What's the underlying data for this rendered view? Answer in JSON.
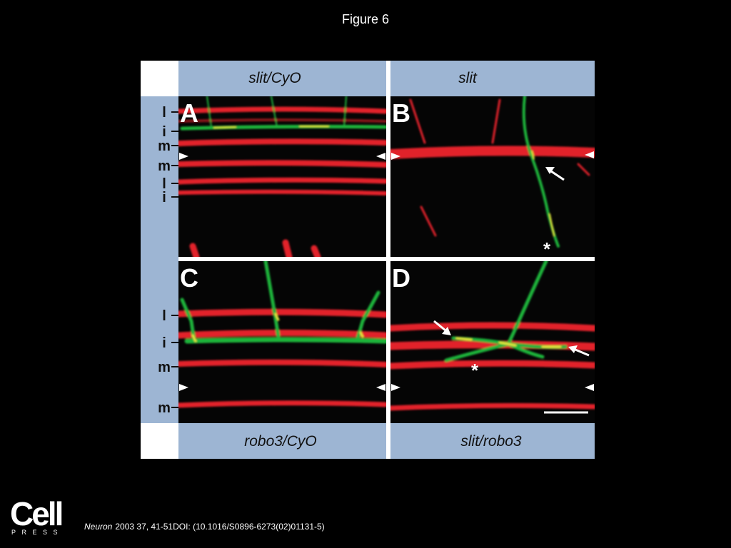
{
  "header": {
    "title": "Figure 6"
  },
  "figure": {
    "column_headers_top": [
      "slit/CyO",
      "slit"
    ],
    "column_headers_bottom": [
      "robo3/CyO",
      "slit/robo3"
    ],
    "panels": [
      {
        "letter": "A"
      },
      {
        "letter": "B",
        "asterisk": "*"
      },
      {
        "letter": "C"
      },
      {
        "letter": "D",
        "asterisk": "*"
      }
    ],
    "layer_labels_top": [
      "l",
      "i",
      "m",
      "m",
      "l",
      "i"
    ],
    "layer_labels_bottom": [
      "l",
      "i",
      "m",
      "m"
    ]
  },
  "footer": {
    "logo": "Cell",
    "logo_sub": "PRESS",
    "journal": "Neuron",
    "citation": "2003 37, 41-51DOI: (10.1016/S0896-6273(02)01131-5)"
  }
}
